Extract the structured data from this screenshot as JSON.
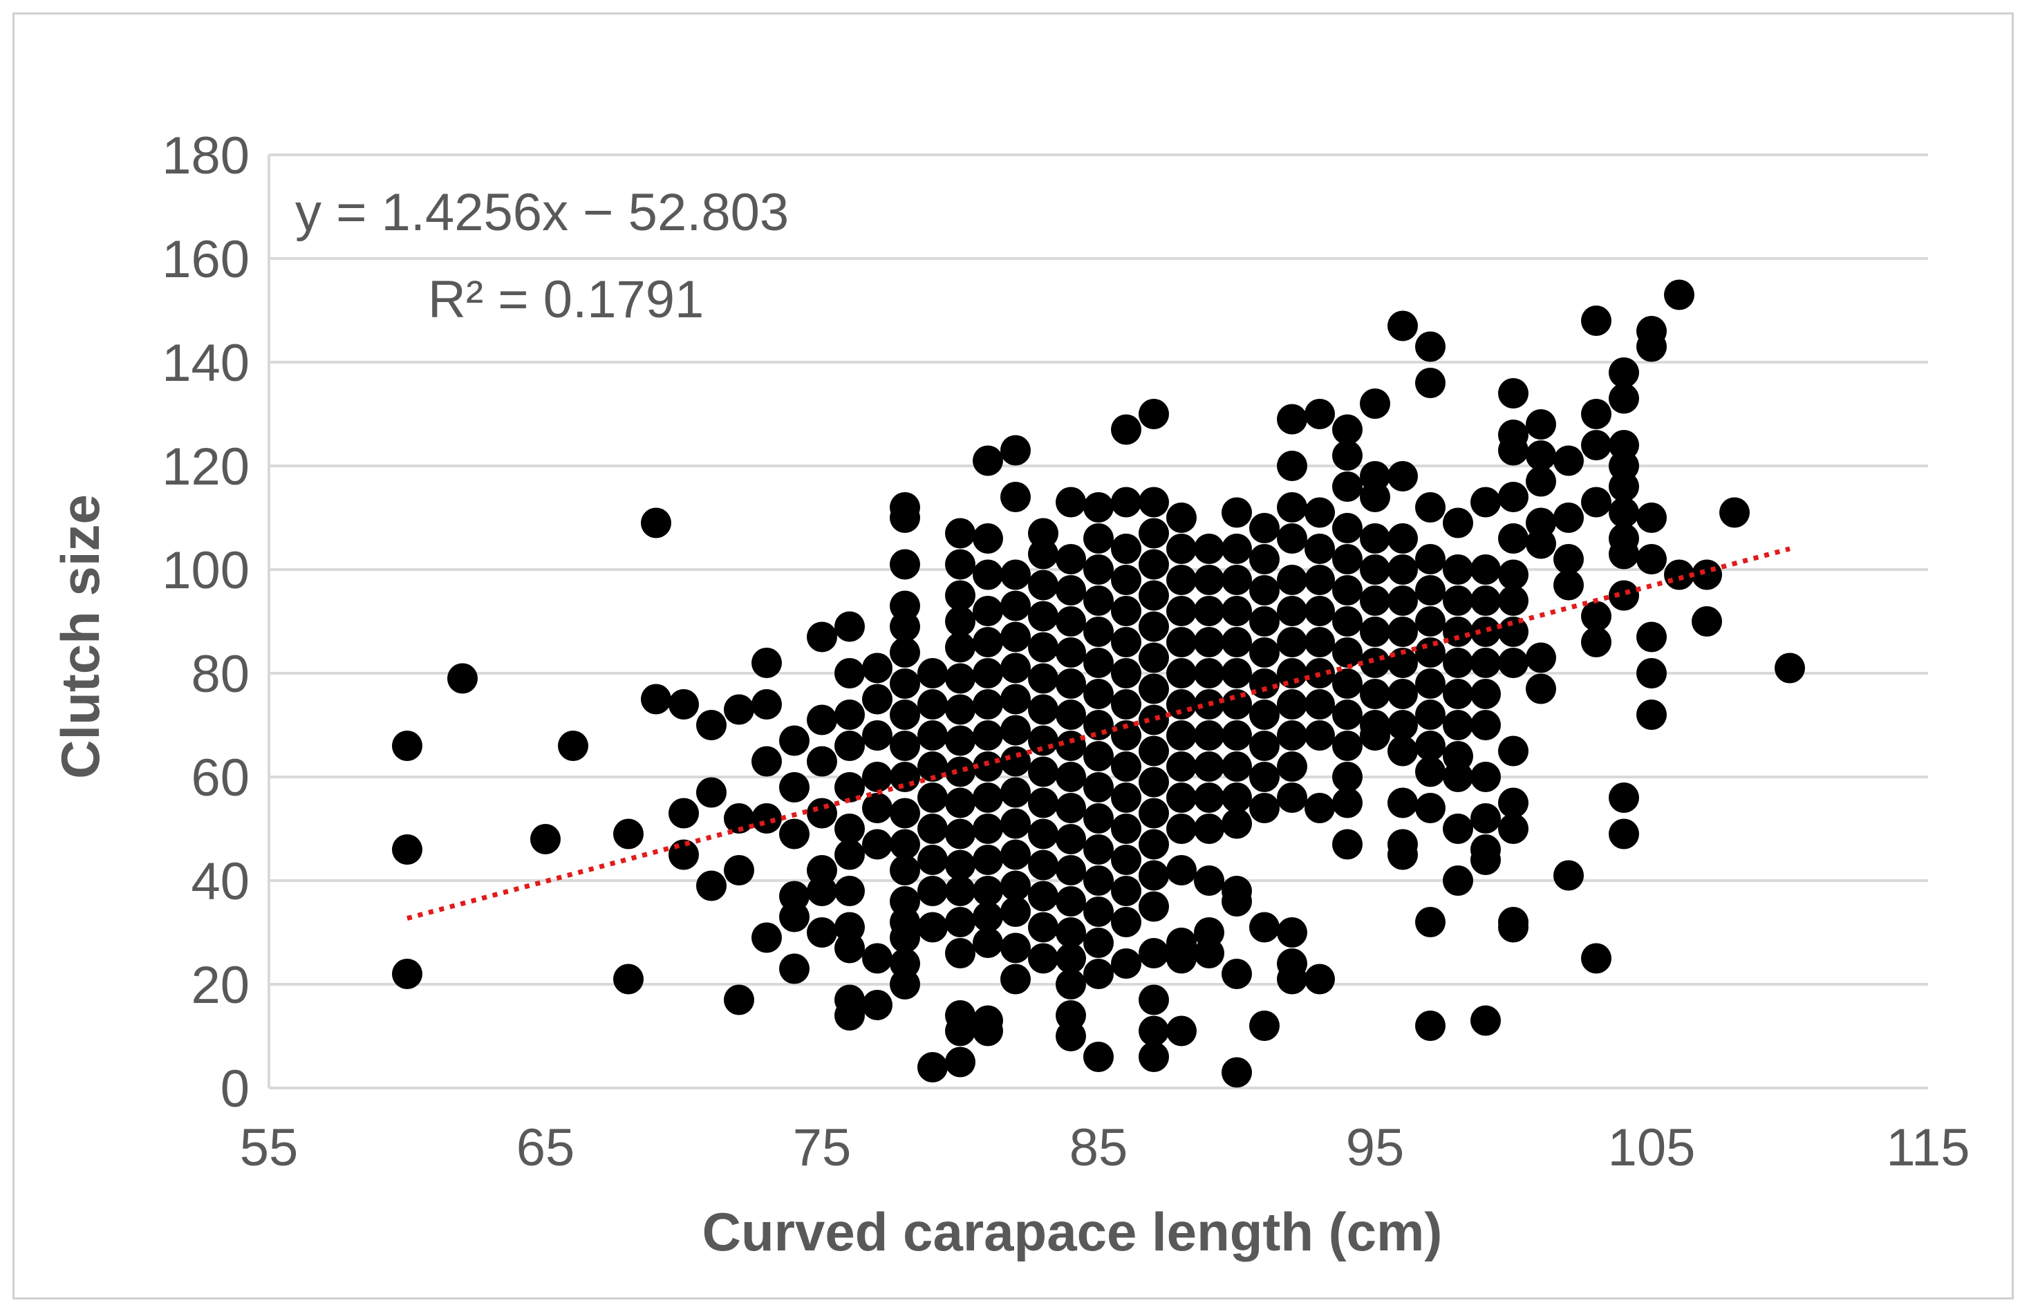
{
  "chart_data": {
    "type": "scatter",
    "xlabel": "Curved carapace length (cm)",
    "ylabel": "Clutch size",
    "xlim": [
      55,
      115
    ],
    "ylim": [
      0,
      180
    ],
    "x_ticks": [
      55,
      65,
      75,
      85,
      95,
      105,
      115
    ],
    "y_ticks": [
      0,
      20,
      40,
      60,
      80,
      100,
      120,
      140,
      160,
      180
    ],
    "grid": "horizontal",
    "trendline": {
      "type": "linear",
      "slope": 1.4256,
      "intercept": -52.803,
      "x_range": [
        60,
        110
      ],
      "style": "dotted",
      "color": "#e11b1b",
      "equation_label": "y = 1.4256x − 52.803",
      "r2_label": "R² = 0.1791"
    },
    "point_color": "#000000",
    "points": [
      [
        60,
        66
      ],
      [
        60,
        46
      ],
      [
        60,
        22
      ],
      [
        62,
        79
      ],
      [
        65,
        48
      ],
      [
        66,
        66
      ],
      [
        68,
        49
      ],
      [
        68,
        21
      ],
      [
        69,
        109
      ],
      [
        69,
        75
      ],
      [
        70,
        74
      ],
      [
        70,
        53
      ],
      [
        70,
        45
      ],
      [
        71,
        70
      ],
      [
        71,
        57
      ],
      [
        71,
        39
      ],
      [
        72,
        73
      ],
      [
        72,
        52
      ],
      [
        72,
        42
      ],
      [
        72,
        17
      ],
      [
        73,
        82
      ],
      [
        73,
        74
      ],
      [
        73,
        63
      ],
      [
        73,
        52
      ],
      [
        73,
        29
      ],
      [
        74,
        67
      ],
      [
        74,
        58
      ],
      [
        74,
        49
      ],
      [
        74,
        37
      ],
      [
        74,
        33
      ],
      [
        74,
        23
      ],
      [
        75,
        87
      ],
      [
        75,
        71
      ],
      [
        75,
        63
      ],
      [
        75,
        53
      ],
      [
        75,
        42
      ],
      [
        75,
        38
      ],
      [
        75,
        30
      ],
      [
        76,
        89
      ],
      [
        76,
        80
      ],
      [
        76,
        72
      ],
      [
        76,
        66
      ],
      [
        76,
        58
      ],
      [
        76,
        50
      ],
      [
        76,
        45
      ],
      [
        76,
        38
      ],
      [
        76,
        31
      ],
      [
        76,
        27
      ],
      [
        76,
        17
      ],
      [
        76,
        14
      ],
      [
        77,
        81
      ],
      [
        77,
        75
      ],
      [
        77,
        68
      ],
      [
        77,
        60
      ],
      [
        77,
        54
      ],
      [
        77,
        47
      ],
      [
        77,
        25
      ],
      [
        77,
        16
      ],
      [
        78,
        112
      ],
      [
        78,
        110
      ],
      [
        78,
        101
      ],
      [
        78,
        93
      ],
      [
        78,
        89
      ],
      [
        78,
        84
      ],
      [
        78,
        78
      ],
      [
        78,
        72
      ],
      [
        78,
        66
      ],
      [
        78,
        60
      ],
      [
        78,
        53
      ],
      [
        78,
        47
      ],
      [
        78,
        42
      ],
      [
        78,
        36
      ],
      [
        78,
        32
      ],
      [
        78,
        29
      ],
      [
        78,
        24
      ],
      [
        78,
        20
      ],
      [
        79,
        80
      ],
      [
        79,
        74
      ],
      [
        79,
        68
      ],
      [
        79,
        62
      ],
      [
        79,
        56
      ],
      [
        79,
        50
      ],
      [
        79,
        44
      ],
      [
        79,
        38
      ],
      [
        79,
        31
      ],
      [
        79,
        4
      ],
      [
        80,
        107
      ],
      [
        80,
        101
      ],
      [
        80,
        95
      ],
      [
        80,
        90
      ],
      [
        80,
        85
      ],
      [
        80,
        79
      ],
      [
        80,
        73
      ],
      [
        80,
        67
      ],
      [
        80,
        61
      ],
      [
        80,
        55
      ],
      [
        80,
        49
      ],
      [
        80,
        43
      ],
      [
        80,
        38
      ],
      [
        80,
        32
      ],
      [
        80,
        26
      ],
      [
        80,
        14
      ],
      [
        80,
        11
      ],
      [
        80,
        5
      ],
      [
        81,
        121
      ],
      [
        81,
        106
      ],
      [
        81,
        99
      ],
      [
        81,
        92
      ],
      [
        81,
        86
      ],
      [
        81,
        80
      ],
      [
        81,
        74
      ],
      [
        81,
        68
      ],
      [
        81,
        62
      ],
      [
        81,
        56
      ],
      [
        81,
        50
      ],
      [
        81,
        44
      ],
      [
        81,
        38
      ],
      [
        81,
        33
      ],
      [
        81,
        28
      ],
      [
        81,
        13
      ],
      [
        81,
        11
      ],
      [
        82,
        123
      ],
      [
        82,
        114
      ],
      [
        82,
        99
      ],
      [
        82,
        93
      ],
      [
        82,
        87
      ],
      [
        82,
        81
      ],
      [
        82,
        75
      ],
      [
        82,
        69
      ],
      [
        82,
        63
      ],
      [
        82,
        57
      ],
      [
        82,
        51
      ],
      [
        82,
        45
      ],
      [
        82,
        39
      ],
      [
        82,
        34
      ],
      [
        82,
        27
      ],
      [
        82,
        21
      ],
      [
        83,
        107
      ],
      [
        83,
        103
      ],
      [
        83,
        97
      ],
      [
        83,
        91
      ],
      [
        83,
        85
      ],
      [
        83,
        79
      ],
      [
        83,
        73
      ],
      [
        83,
        67
      ],
      [
        83,
        61
      ],
      [
        83,
        55
      ],
      [
        83,
        49
      ],
      [
        83,
        43
      ],
      [
        83,
        37
      ],
      [
        83,
        31
      ],
      [
        83,
        25
      ],
      [
        84,
        113
      ],
      [
        84,
        102
      ],
      [
        84,
        96
      ],
      [
        84,
        90
      ],
      [
        84,
        84
      ],
      [
        84,
        78
      ],
      [
        84,
        72
      ],
      [
        84,
        66
      ],
      [
        84,
        60
      ],
      [
        84,
        54
      ],
      [
        84,
        48
      ],
      [
        84,
        42
      ],
      [
        84,
        36
      ],
      [
        84,
        30
      ],
      [
        84,
        25
      ],
      [
        84,
        20
      ],
      [
        84,
        14
      ],
      [
        84,
        10
      ],
      [
        85,
        112
      ],
      [
        85,
        106
      ],
      [
        85,
        100
      ],
      [
        85,
        94
      ],
      [
        85,
        88
      ],
      [
        85,
        82
      ],
      [
        85,
        76
      ],
      [
        85,
        70
      ],
      [
        85,
        64
      ],
      [
        85,
        58
      ],
      [
        85,
        52
      ],
      [
        85,
        46
      ],
      [
        85,
        40
      ],
      [
        85,
        34
      ],
      [
        85,
        28
      ],
      [
        85,
        22
      ],
      [
        85,
        6
      ],
      [
        86,
        127
      ],
      [
        86,
        113
      ],
      [
        86,
        104
      ],
      [
        86,
        98
      ],
      [
        86,
        92
      ],
      [
        86,
        86
      ],
      [
        86,
        80
      ],
      [
        86,
        74
      ],
      [
        86,
        68
      ],
      [
        86,
        62
      ],
      [
        86,
        56
      ],
      [
        86,
        50
      ],
      [
        86,
        44
      ],
      [
        86,
        38
      ],
      [
        86,
        32
      ],
      [
        86,
        24
      ],
      [
        87,
        130
      ],
      [
        87,
        113
      ],
      [
        87,
        107
      ],
      [
        87,
        101
      ],
      [
        87,
        95
      ],
      [
        87,
        89
      ],
      [
        87,
        83
      ],
      [
        87,
        77
      ],
      [
        87,
        71
      ],
      [
        87,
        65
      ],
      [
        87,
        59
      ],
      [
        87,
        53
      ],
      [
        87,
        47
      ],
      [
        87,
        41
      ],
      [
        87,
        35
      ],
      [
        87,
        26
      ],
      [
        87,
        17
      ],
      [
        87,
        11
      ],
      [
        87,
        6
      ],
      [
        88,
        110
      ],
      [
        88,
        104
      ],
      [
        88,
        98
      ],
      [
        88,
        92
      ],
      [
        88,
        86
      ],
      [
        88,
        80
      ],
      [
        88,
        74
      ],
      [
        88,
        68
      ],
      [
        88,
        62
      ],
      [
        88,
        56
      ],
      [
        88,
        50
      ],
      [
        88,
        42
      ],
      [
        88,
        28
      ],
      [
        88,
        25
      ],
      [
        88,
        11
      ],
      [
        89,
        104
      ],
      [
        89,
        98
      ],
      [
        89,
        92
      ],
      [
        89,
        86
      ],
      [
        89,
        80
      ],
      [
        89,
        74
      ],
      [
        89,
        68
      ],
      [
        89,
        62
      ],
      [
        89,
        56
      ],
      [
        89,
        50
      ],
      [
        89,
        40
      ],
      [
        89,
        30
      ],
      [
        89,
        26
      ],
      [
        90,
        111
      ],
      [
        90,
        104
      ],
      [
        90,
        98
      ],
      [
        90,
        92
      ],
      [
        90,
        86
      ],
      [
        90,
        80
      ],
      [
        90,
        74
      ],
      [
        90,
        68
      ],
      [
        90,
        62
      ],
      [
        90,
        56
      ],
      [
        90,
        51
      ],
      [
        90,
        38
      ],
      [
        90,
        36
      ],
      [
        90,
        22
      ],
      [
        90,
        3
      ],
      [
        91,
        108
      ],
      [
        91,
        102
      ],
      [
        91,
        96
      ],
      [
        91,
        90
      ],
      [
        91,
        84
      ],
      [
        91,
        78
      ],
      [
        91,
        72
      ],
      [
        91,
        66
      ],
      [
        91,
        60
      ],
      [
        91,
        54
      ],
      [
        91,
        31
      ],
      [
        91,
        12
      ],
      [
        92,
        129
      ],
      [
        92,
        120
      ],
      [
        92,
        112
      ],
      [
        92,
        106
      ],
      [
        92,
        98
      ],
      [
        92,
        92
      ],
      [
        92,
        86
      ],
      [
        92,
        80
      ],
      [
        92,
        74
      ],
      [
        92,
        68
      ],
      [
        92,
        62
      ],
      [
        92,
        56
      ],
      [
        92,
        30
      ],
      [
        92,
        24
      ],
      [
        92,
        21
      ],
      [
        93,
        130
      ],
      [
        93,
        111
      ],
      [
        93,
        104
      ],
      [
        93,
        98
      ],
      [
        93,
        92
      ],
      [
        93,
        86
      ],
      [
        93,
        80
      ],
      [
        93,
        74
      ],
      [
        93,
        68
      ],
      [
        93,
        54
      ],
      [
        93,
        21
      ],
      [
        94,
        127
      ],
      [
        94,
        122
      ],
      [
        94,
        116
      ],
      [
        94,
        108
      ],
      [
        94,
        102
      ],
      [
        94,
        96
      ],
      [
        94,
        90
      ],
      [
        94,
        84
      ],
      [
        94,
        78
      ],
      [
        94,
        72
      ],
      [
        94,
        66
      ],
      [
        94,
        60
      ],
      [
        94,
        55
      ],
      [
        94,
        47
      ],
      [
        95,
        132
      ],
      [
        95,
        118
      ],
      [
        95,
        114
      ],
      [
        95,
        106
      ],
      [
        95,
        100
      ],
      [
        95,
        94
      ],
      [
        95,
        88
      ],
      [
        95,
        82
      ],
      [
        95,
        76
      ],
      [
        95,
        70
      ],
      [
        95,
        68
      ],
      [
        96,
        147
      ],
      [
        96,
        118
      ],
      [
        96,
        106
      ],
      [
        96,
        100
      ],
      [
        96,
        94
      ],
      [
        96,
        88
      ],
      [
        96,
        82
      ],
      [
        96,
        76
      ],
      [
        96,
        70
      ],
      [
        96,
        65
      ],
      [
        96,
        55
      ],
      [
        96,
        47
      ],
      [
        96,
        45
      ],
      [
        97,
        143
      ],
      [
        97,
        136
      ],
      [
        97,
        112
      ],
      [
        97,
        102
      ],
      [
        97,
        96
      ],
      [
        97,
        90
      ],
      [
        97,
        84
      ],
      [
        97,
        78
      ],
      [
        97,
        72
      ],
      [
        97,
        66
      ],
      [
        97,
        61
      ],
      [
        97,
        54
      ],
      [
        97,
        32
      ],
      [
        97,
        12
      ],
      [
        98,
        109
      ],
      [
        98,
        100
      ],
      [
        98,
        94
      ],
      [
        98,
        88
      ],
      [
        98,
        82
      ],
      [
        98,
        76
      ],
      [
        98,
        70
      ],
      [
        98,
        64
      ],
      [
        98,
        60
      ],
      [
        98,
        50
      ],
      [
        98,
        40
      ],
      [
        99,
        113
      ],
      [
        99,
        100
      ],
      [
        99,
        94
      ],
      [
        99,
        88
      ],
      [
        99,
        82
      ],
      [
        99,
        76
      ],
      [
        99,
        70
      ],
      [
        99,
        60
      ],
      [
        99,
        52
      ],
      [
        99,
        46
      ],
      [
        99,
        44
      ],
      [
        99,
        13
      ],
      [
        100,
        134
      ],
      [
        100,
        126
      ],
      [
        100,
        123
      ],
      [
        100,
        114
      ],
      [
        100,
        106
      ],
      [
        100,
        99
      ],
      [
        100,
        94
      ],
      [
        100,
        88
      ],
      [
        100,
        82
      ],
      [
        100,
        65
      ],
      [
        100,
        55
      ],
      [
        100,
        50
      ],
      [
        100,
        32
      ],
      [
        100,
        31
      ],
      [
        101,
        128
      ],
      [
        101,
        122
      ],
      [
        101,
        117
      ],
      [
        101,
        109
      ],
      [
        101,
        105
      ],
      [
        101,
        83
      ],
      [
        101,
        77
      ],
      [
        102,
        121
      ],
      [
        102,
        110
      ],
      [
        102,
        102
      ],
      [
        102,
        97
      ],
      [
        102,
        41
      ],
      [
        103,
        148
      ],
      [
        103,
        130
      ],
      [
        103,
        124
      ],
      [
        103,
        113
      ],
      [
        103,
        91
      ],
      [
        103,
        86
      ],
      [
        103,
        25
      ],
      [
        104,
        138
      ],
      [
        104,
        133
      ],
      [
        104,
        124
      ],
      [
        104,
        120
      ],
      [
        104,
        116
      ],
      [
        104,
        111
      ],
      [
        104,
        106
      ],
      [
        104,
        103
      ],
      [
        104,
        95
      ],
      [
        104,
        56
      ],
      [
        104,
        49
      ],
      [
        105,
        146
      ],
      [
        105,
        143
      ],
      [
        105,
        110
      ],
      [
        105,
        102
      ],
      [
        105,
        87
      ],
      [
        105,
        80
      ],
      [
        105,
        72
      ],
      [
        106,
        153
      ],
      [
        106,
        99
      ],
      [
        107,
        99
      ],
      [
        107,
        90
      ],
      [
        108,
        111
      ],
      [
        110,
        81
      ]
    ]
  }
}
